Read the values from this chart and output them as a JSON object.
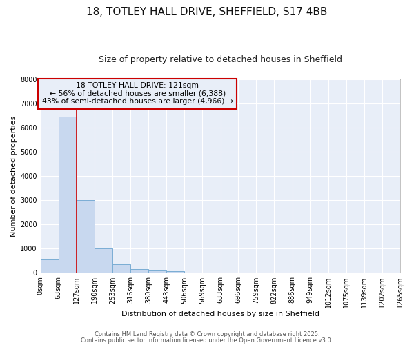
{
  "title_line1": "18, TOTLEY HALL DRIVE, SHEFFIELD, S17 4BB",
  "title_line2": "Size of property relative to detached houses in Sheffield",
  "xlabel": "Distribution of detached houses by size in Sheffield",
  "ylabel": "Number of detached properties",
  "bar_values": [
    550,
    6450,
    3000,
    1000,
    370,
    160,
    100,
    75,
    8,
    4,
    2,
    1,
    1,
    0,
    0,
    0,
    0,
    0,
    0,
    0
  ],
  "bin_edges": [
    0,
    63,
    127,
    190,
    253,
    316,
    380,
    443,
    506,
    569,
    633,
    696,
    759,
    822,
    886,
    949,
    1012,
    1075,
    1139,
    1202,
    1265
  ],
  "x_tick_labels": [
    "0sqm",
    "63sqm",
    "127sqm",
    "190sqm",
    "253sqm",
    "316sqm",
    "380sqm",
    "443sqm",
    "506sqm",
    "569sqm",
    "633sqm",
    "696sqm",
    "759sqm",
    "822sqm",
    "886sqm",
    "949sqm",
    "1012sqm",
    "1075sqm",
    "1139sqm",
    "1202sqm",
    "1265sqm"
  ],
  "bar_color": "#c8d8ef",
  "bar_edge_color": "#7aadd4",
  "property_line_x": 127,
  "property_line_color": "#cc0000",
  "annotation_title": "18 TOTLEY HALL DRIVE: 121sqm",
  "annotation_line1": "← 56% of detached houses are smaller (6,388)",
  "annotation_line2": "43% of semi-detached houses are larger (4,966) →",
  "annotation_box_color": "#cc0000",
  "ylim": [
    0,
    8000
  ],
  "yticks": [
    0,
    1000,
    2000,
    3000,
    4000,
    5000,
    6000,
    7000,
    8000
  ],
  "figure_bg": "#ffffff",
  "axes_bg": "#e8eef8",
  "grid_color": "#ffffff",
  "spine_color": "#aaaaaa",
  "footer_line1": "Contains HM Land Registry data © Crown copyright and database right 2025.",
  "footer_line2": "Contains public sector information licensed under the Open Government Licence v3.0.",
  "title1_fontsize": 11,
  "title2_fontsize": 9,
  "ylabel_fontsize": 8,
  "xlabel_fontsize": 8,
  "tick_fontsize": 7,
  "footer_fontsize": 6
}
